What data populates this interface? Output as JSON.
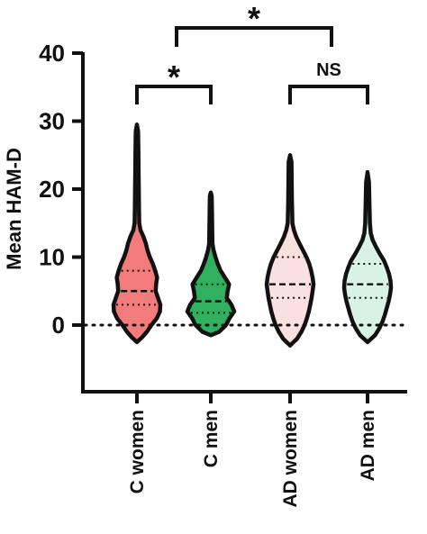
{
  "chart_data": {
    "type": "violin",
    "ylabel": "Mean HAM-D",
    "xlabel": "",
    "ylim": [
      -10,
      40
    ],
    "yticks": [
      0,
      10,
      20,
      30,
      40
    ],
    "reference_line": {
      "y": 0,
      "style": "dotted"
    },
    "categories": [
      "C women",
      "C men",
      "AD women",
      "AD men"
    ],
    "groups": [
      {
        "label": "C women",
        "fill": "#f47b7b",
        "min": -2.5,
        "max": 29.5,
        "median": 5.0,
        "q1": 3.0,
        "q3": 8.0,
        "density": [
          [
            -2.5,
            0
          ],
          [
            -1.8,
            0.22
          ],
          [
            -1,
            0.42
          ],
          [
            0,
            0.62
          ],
          [
            1,
            0.85
          ],
          [
            2,
            0.98
          ],
          [
            3,
            1.0
          ],
          [
            4,
            0.9
          ],
          [
            5,
            0.8
          ],
          [
            6,
            0.82
          ],
          [
            7,
            0.86
          ],
          [
            8,
            0.78
          ],
          [
            9,
            0.68
          ],
          [
            10,
            0.55
          ],
          [
            11,
            0.45
          ],
          [
            12,
            0.38
          ],
          [
            13,
            0.28
          ],
          [
            14,
            0.15
          ],
          [
            15,
            0.1
          ],
          [
            17,
            0.09
          ],
          [
            20,
            0.08
          ],
          [
            23,
            0.07
          ],
          [
            26,
            0.06
          ],
          [
            28.5,
            0.05
          ],
          [
            29.5,
            0
          ]
        ]
      },
      {
        "label": "C men",
        "fill": "#2fb15f",
        "min": -1.5,
        "max": 19.5,
        "median": 3.5,
        "q1": 1.8,
        "q3": 6.0,
        "density": [
          [
            -1.5,
            0
          ],
          [
            -1,
            0.35
          ],
          [
            0,
            0.65
          ],
          [
            1,
            0.8
          ],
          [
            2,
            1.0
          ],
          [
            3,
            0.88
          ],
          [
            4,
            0.68
          ],
          [
            5,
            0.72
          ],
          [
            6,
            0.78
          ],
          [
            7,
            0.6
          ],
          [
            8,
            0.42
          ],
          [
            9,
            0.3
          ],
          [
            10,
            0.2
          ],
          [
            11,
            0.12
          ],
          [
            12,
            0.07
          ],
          [
            14,
            0.06
          ],
          [
            17,
            0.05
          ],
          [
            19,
            0.04
          ],
          [
            19.5,
            0
          ]
        ]
      },
      {
        "label": "AD women",
        "fill": "#fbe0e0",
        "min": -3.0,
        "max": 25.0,
        "median": 6.0,
        "q1": 4.0,
        "q3": 10.0,
        "density": [
          [
            -3,
            0
          ],
          [
            -2,
            0.3
          ],
          [
            -1,
            0.48
          ],
          [
            0,
            0.62
          ],
          [
            1,
            0.72
          ],
          [
            2,
            0.8
          ],
          [
            3,
            0.86
          ],
          [
            4,
            0.92
          ],
          [
            5,
            0.96
          ],
          [
            6,
            1.0
          ],
          [
            7,
            0.96
          ],
          [
            8,
            0.9
          ],
          [
            9,
            0.82
          ],
          [
            10,
            0.7
          ],
          [
            11,
            0.55
          ],
          [
            12,
            0.4
          ],
          [
            13,
            0.26
          ],
          [
            14,
            0.16
          ],
          [
            15,
            0.1
          ],
          [
            18,
            0.08
          ],
          [
            21,
            0.07
          ],
          [
            24,
            0.06
          ],
          [
            25,
            0
          ]
        ]
      },
      {
        "label": "AD men",
        "fill": "#d8f2e6",
        "min": -2.5,
        "max": 22.5,
        "median": 6.0,
        "q1": 4.0,
        "q3": 9.0,
        "density": [
          [
            -2.5,
            0
          ],
          [
            -1.5,
            0.32
          ],
          [
            -0.5,
            0.5
          ],
          [
            0.5,
            0.64
          ],
          [
            1.5,
            0.74
          ],
          [
            2.5,
            0.82
          ],
          [
            3.5,
            0.9
          ],
          [
            4.5,
            0.96
          ],
          [
            5.5,
            1.0
          ],
          [
            6.5,
            0.98
          ],
          [
            7.5,
            0.92
          ],
          [
            8.5,
            0.82
          ],
          [
            9.5,
            0.7
          ],
          [
            10.5,
            0.52
          ],
          [
            11.5,
            0.36
          ],
          [
            12.5,
            0.22
          ],
          [
            13.5,
            0.14
          ],
          [
            15,
            0.1
          ],
          [
            18,
            0.08
          ],
          [
            21,
            0.06
          ],
          [
            22.5,
            0
          ]
        ]
      }
    ],
    "significance": [
      {
        "from": "C women",
        "to": "C men",
        "label": "*"
      },
      {
        "from": "AD women",
        "to": "AD men",
        "label": "NS"
      },
      {
        "from": "C men",
        "to": "AD women",
        "label": "*"
      }
    ]
  }
}
